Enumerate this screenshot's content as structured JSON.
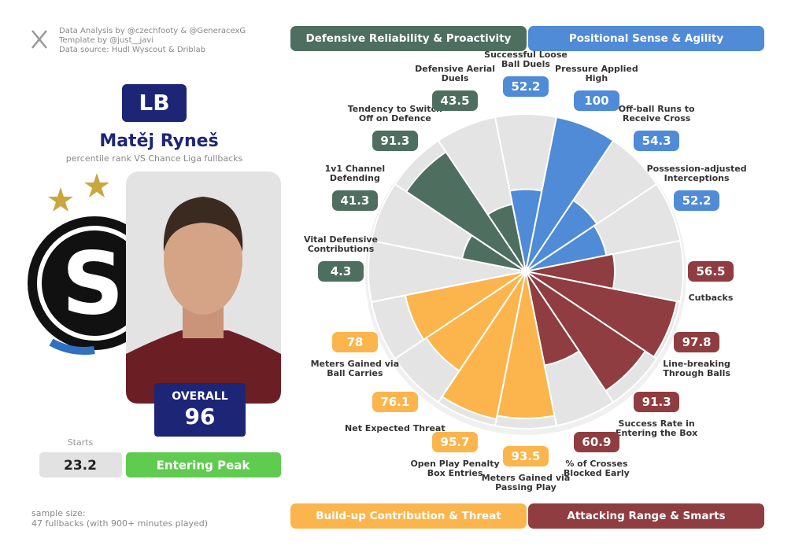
{
  "header": {
    "credits": [
      "Data Analysis by @czechfooty & @GeneracexG",
      "Template by @just__javi",
      "Data source: Hudl Wyscout & Driblab"
    ]
  },
  "player": {
    "position": "LB",
    "name": "Matěj Ryneš",
    "subtitle": "percentile rank VS Chance Liga fullbacks",
    "overall_label": "OVERALL",
    "overall": 96,
    "starts_label": "Starts",
    "starts": 23.2,
    "status": "Entering Peak"
  },
  "footer": {
    "sample_label": "sample size:",
    "sample": "47 fullbacks (with 900+ minutes played)"
  },
  "chart_data": {
    "type": "pizza",
    "rlim": [
      0,
      100
    ],
    "series": [
      {
        "name": "Defensive Reliability & Proactivity",
        "color": "#4e6e60",
        "categories": [
          "Vital Defensive Contributions",
          "1v1 Channel Defending",
          "Tendency to Switch Off on Defence",
          "Defensive Aerial Duels"
        ],
        "values": [
          4.3,
          41.3,
          91.3,
          43.5
        ]
      },
      {
        "name": "Positional Sense & Agility",
        "color": "#4f8bd6",
        "categories": [
          "Successful Loose Ball Duels",
          "Pressure Applied High",
          "Off-ball Runs to Receive Cross",
          "Possession-adjusted Interceptions"
        ],
        "values": [
          52.2,
          100,
          54.3,
          52.2
        ]
      },
      {
        "name": "Attacking Range & Smarts",
        "color": "#8f3d40",
        "categories": [
          "Cutbacks",
          "Line-breaking Through Balls",
          "Success Rate in Entering the Box",
          "% of Crosses Blocked Early"
        ],
        "values": [
          56.5,
          97.8,
          91.3,
          60.9
        ]
      },
      {
        "name": "Build-up Contribution & Threat",
        "color": "#fbb54c",
        "categories": [
          "Meters Gained via Passing Play",
          "Open Play Penalty Box Entries",
          "Net Expected Threat",
          "Meters Gained via Ball Carries"
        ],
        "values": [
          93.5,
          95.7,
          76.1,
          78
        ]
      }
    ]
  }
}
